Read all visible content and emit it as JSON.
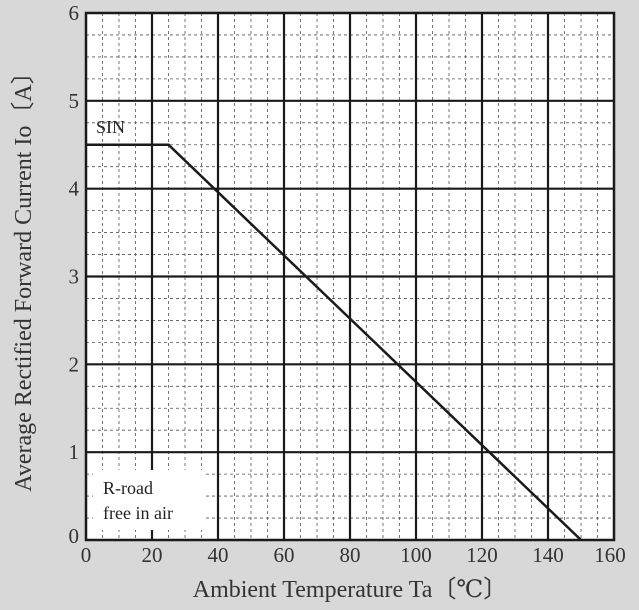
{
  "chart_data": {
    "type": "line",
    "xlabel": "Ambient Temperature  Ta〔℃〕",
    "ylabel": "Average Rectified Forward Current  Io〔A〕",
    "xlim": [
      0,
      160
    ],
    "ylim": [
      0,
      6
    ],
    "x_ticks": [
      "0",
      "20",
      "40",
      "60",
      "80",
      "100",
      "120",
      "140",
      "160"
    ],
    "y_ticks": [
      "0",
      "1",
      "2",
      "3",
      "4",
      "5",
      "6"
    ],
    "grid": "major solid, minor dashed",
    "series": [
      {
        "name": "SIN",
        "color": "#1a1a1a",
        "x": [
          0,
          25,
          150
        ],
        "y": [
          4.5,
          4.5,
          0
        ]
      }
    ],
    "annotations": [
      "R-road",
      "free in air"
    ]
  }
}
